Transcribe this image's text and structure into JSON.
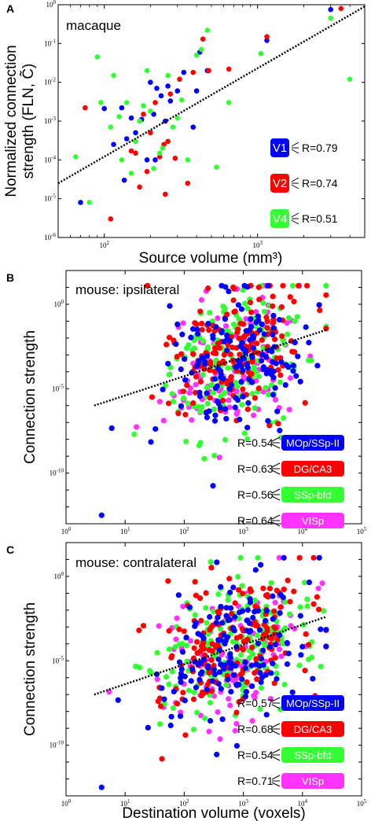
{
  "colors": {
    "V1": "#0000ff",
    "V2": "#ff0000",
    "V4": "#33ff33",
    "VISp": "#ff33ff",
    "fit": "#000000"
  },
  "chart_data": [
    {
      "panel": "A",
      "type": "scatter",
      "annotation": "macaque",
      "xlabel": "Source volume (mm³)",
      "ylabel_line1": "Normalized connection",
      "ylabel_line2": "strength (FLN, C̃)",
      "xscale": "log",
      "yscale": "log",
      "xlim": [
        50,
        5000
      ],
      "ylim": [
        1e-06,
        1
      ],
      "xticks": [
        {
          "mant": "10",
          "exp": "2"
        },
        {
          "mant": "10",
          "exp": "3"
        }
      ],
      "yticks": [
        {
          "mant": "10",
          "exp": "0"
        },
        {
          "mant": "10",
          "exp": "-1"
        },
        {
          "mant": "10",
          "exp": "-2"
        },
        {
          "mant": "10",
          "exp": "-3"
        },
        {
          "mant": "10",
          "exp": "-4"
        },
        {
          "mant": "10",
          "exp": "-5"
        },
        {
          "mant": "10",
          "exp": "-6"
        }
      ],
      "fit": {
        "x": [
          50,
          5000
        ],
        "y": [
          2.5e-05,
          0.9
        ]
      },
      "legend": [
        {
          "name": "V1",
          "label": "V1",
          "r": "R=0.79"
        },
        {
          "name": "V2",
          "label": "V2",
          "r": "R=0.74"
        },
        {
          "name": "V4",
          "label": "V4",
          "r": "R=0.51"
        }
      ],
      "series": [
        {
          "name": "V1",
          "points": [
            [
              70,
              8e-06
            ],
            [
              100,
              0.0021
            ],
            [
              115,
              0.00025
            ],
            [
              130,
              0.0022
            ],
            [
              135,
              3e-05
            ],
            [
              140,
              0.00035
            ],
            [
              150,
              0.0012
            ],
            [
              160,
              0.0005
            ],
            [
              175,
              0.0011
            ],
            [
              190,
              0.0001
            ],
            [
              200,
              0.01
            ],
            [
              210,
              0.0015
            ],
            [
              215,
              0.0001
            ],
            [
              220,
              0.007
            ],
            [
              235,
              0.0045
            ],
            [
              250,
              0.001
            ],
            [
              260,
              0.008
            ],
            [
              270,
              0.0033
            ],
            [
              300,
              0.006
            ],
            [
              330,
              0.018
            ],
            [
              380,
              0.0007
            ],
            [
              400,
              0.006
            ],
            [
              420,
              0.06
            ],
            [
              470,
              0.02
            ],
            [
              1150,
              0.12
            ],
            [
              3000,
              0.75
            ]
          ]
        },
        {
          "name": "V2",
          "points": [
            [
              75,
              0.0022
            ],
            [
              110,
              3e-06
            ],
            [
              150,
              0.00017
            ],
            [
              160,
              0.00015
            ],
            [
              170,
              2e-05
            ],
            [
              180,
              0.0015
            ],
            [
              190,
              5e-05
            ],
            [
              200,
              0.0005
            ],
            [
              215,
              0.003
            ],
            [
              230,
              0.00012
            ],
            [
              245,
              0.00025
            ],
            [
              250,
              1.3e-05
            ],
            [
              260,
              0.0003
            ],
            [
              270,
              0.005
            ],
            [
              290,
              0.00011
            ],
            [
              310,
              0.012
            ],
            [
              350,
              2.5e-05
            ],
            [
              380,
              0.018
            ],
            [
              440,
              0.13
            ],
            [
              480,
              0.02
            ],
            [
              650,
              0.022
            ],
            [
              1150,
              0.15
            ],
            [
              3500,
              0.8
            ]
          ]
        },
        {
          "name": "V4",
          "points": [
            [
              65,
              0.00012
            ],
            [
              80,
              8e-06
            ],
            [
              90,
              0.045
            ],
            [
              95,
              0.003
            ],
            [
              110,
              0.0007
            ],
            [
              115,
              0.015
            ],
            [
              125,
              0.0013
            ],
            [
              130,
              0.0001
            ],
            [
              140,
              0.003
            ],
            [
              150,
              4.5e-05
            ],
            [
              160,
              0.0003
            ],
            [
              170,
              0.001
            ],
            [
              180,
              0.0025
            ],
            [
              190,
              0.02
            ],
            [
              200,
              0.0018
            ],
            [
              210,
              6e-05
            ],
            [
              230,
              0.00015
            ],
            [
              240,
              0.0002
            ],
            [
              260,
              0.015
            ],
            [
              280,
              0.0007
            ],
            [
              300,
              0.0012
            ],
            [
              320,
              0.0035
            ],
            [
              350,
              0.0001
            ],
            [
              400,
              0.05
            ],
            [
              430,
              0.07
            ],
            [
              470,
              0.22
            ],
            [
              540,
              6.5e-05
            ],
            [
              650,
              0.003
            ],
            [
              1050,
              0.055
            ],
            [
              3000,
              0.45
            ],
            [
              4000,
              0.012
            ]
          ]
        }
      ]
    },
    {
      "panel": "B",
      "type": "scatter",
      "annotation": "mouse: ipsilateral",
      "xlabel": "",
      "ylabel_line1": "Connection strength",
      "xscale": "log",
      "yscale": "log",
      "xlim": [
        1,
        100000
      ],
      "ylim": [
        1e-13,
        100
      ],
      "xticks": [
        {
          "mant": "10",
          "exp": "0"
        },
        {
          "mant": "10",
          "exp": "1"
        },
        {
          "mant": "10",
          "exp": "2"
        },
        {
          "mant": "10",
          "exp": "3"
        },
        {
          "mant": "10",
          "exp": "4"
        },
        {
          "mant": "10",
          "exp": "5"
        }
      ],
      "yticks": [
        {
          "mant": "10",
          "exp": "0"
        },
        {
          "mant": "10",
          "exp": "-5"
        },
        {
          "mant": "10",
          "exp": "-10"
        }
      ],
      "fit": {
        "x": [
          3,
          25000
        ],
        "y": [
          1e-06,
          0.03
        ]
      },
      "legend": [
        {
          "name": "V1",
          "label": "MOp/SSp-II",
          "r": "R=0.54"
        },
        {
          "name": "V2",
          "label": "DG/CA3",
          "r": "R=0.63"
        },
        {
          "name": "V4",
          "label": "SSp-bfd",
          "r": "R=0.56"
        },
        {
          "name": "VISp",
          "label": "VISp",
          "r": "R=0.64"
        }
      ],
      "series_seed": 11,
      "series": [
        {
          "name": "VISp",
          "count": 120
        },
        {
          "name": "V4",
          "count": 170
        },
        {
          "name": "V2",
          "count": 170
        },
        {
          "name": "V1",
          "count": 150
        }
      ]
    },
    {
      "panel": "C",
      "type": "scatter",
      "annotation": "mouse: contralateral",
      "xlabel": "Destination volume (voxels)",
      "ylabel_line1": "Connection strength",
      "xscale": "log",
      "yscale": "log",
      "xlim": [
        1,
        100000
      ],
      "ylim": [
        1e-13,
        100
      ],
      "xticks": [
        {
          "mant": "10",
          "exp": "0"
        },
        {
          "mant": "10",
          "exp": "1"
        },
        {
          "mant": "10",
          "exp": "2"
        },
        {
          "mant": "10",
          "exp": "3"
        },
        {
          "mant": "10",
          "exp": "4"
        },
        {
          "mant": "10",
          "exp": "5"
        }
      ],
      "yticks": [
        {
          "mant": "10",
          "exp": "0"
        },
        {
          "mant": "10",
          "exp": "-5"
        },
        {
          "mant": "10",
          "exp": "-10"
        }
      ],
      "fit": {
        "x": [
          3,
          25000
        ],
        "y": [
          1e-07,
          0.004
        ]
      },
      "legend": [
        {
          "name": "V1",
          "label": "MOp/SSp-II",
          "r": "R=0.57"
        },
        {
          "name": "V2",
          "label": "DG/CA3",
          "r": "R=0.68"
        },
        {
          "name": "V4",
          "label": "SSp-bfd",
          "r": "R=0.54"
        },
        {
          "name": "VISp",
          "label": "VISp",
          "r": "R=0.71"
        }
      ],
      "series_seed": 29,
      "series": [
        {
          "name": "VISp",
          "count": 120
        },
        {
          "name": "V4",
          "count": 170
        },
        {
          "name": "V2",
          "count": 170
        },
        {
          "name": "V1",
          "count": 150
        }
      ]
    }
  ]
}
